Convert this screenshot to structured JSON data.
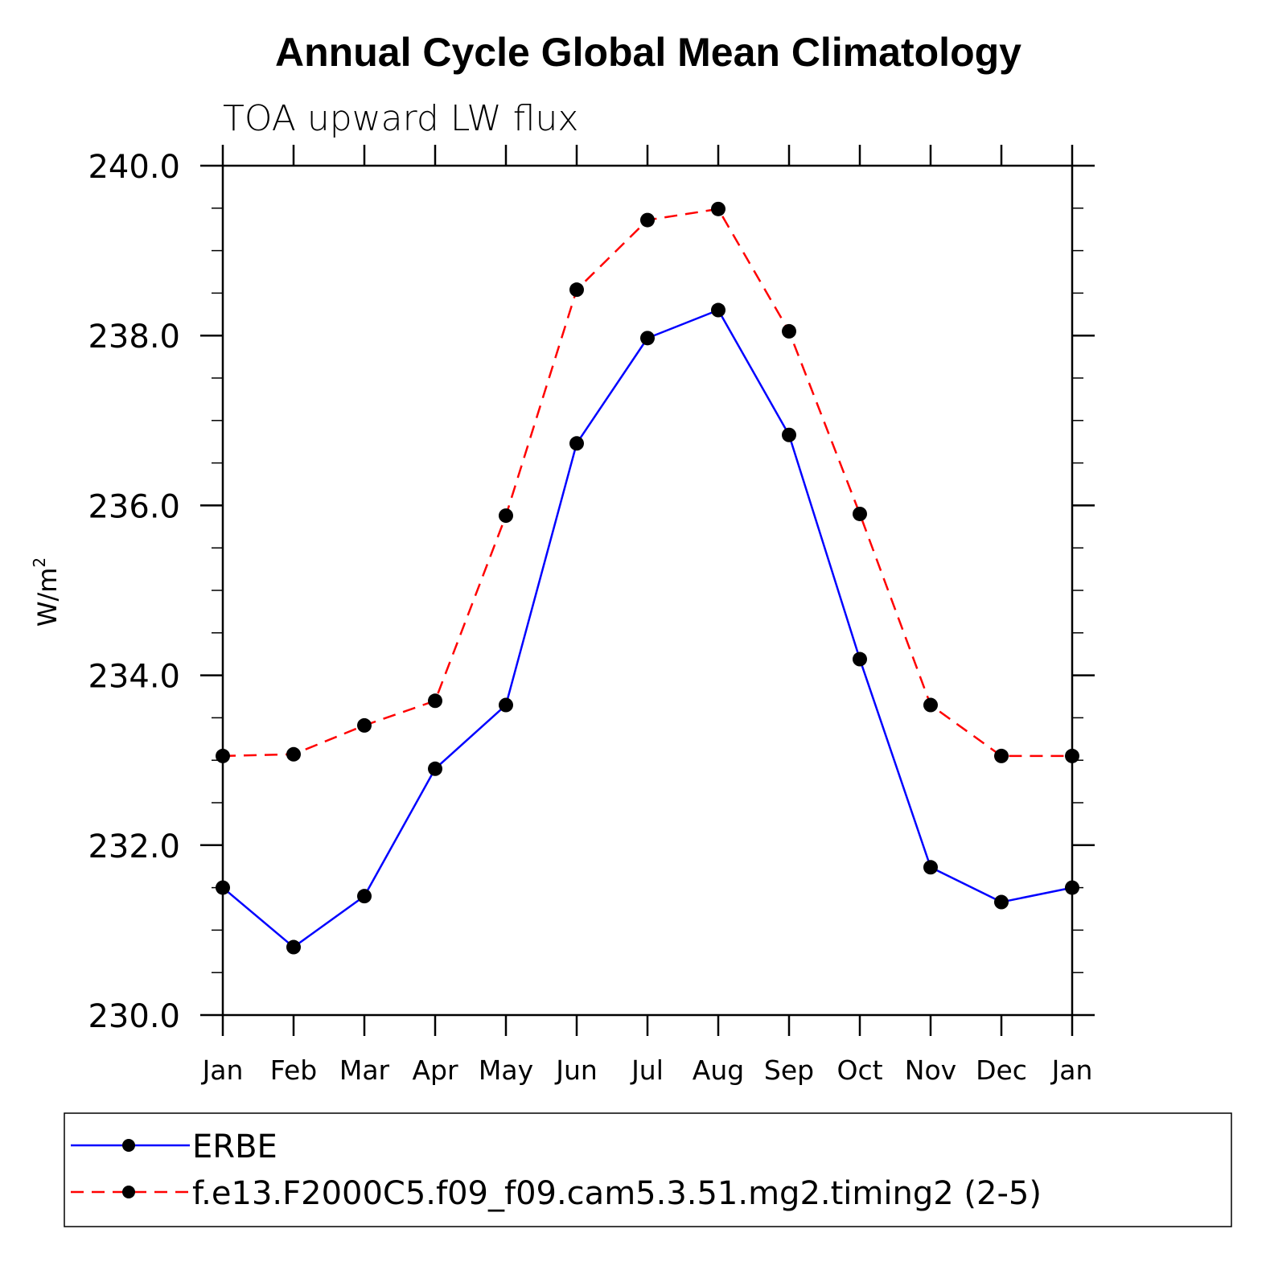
{
  "chart_data": {
    "type": "line",
    "title": "Annual Cycle Global Mean Climatology",
    "subtitle": "TOA upward LW flux",
    "ylabel": "W/m",
    "ylabel_superscript": "2",
    "xlabel": "",
    "categories": [
      "Jan",
      "Feb",
      "Mar",
      "Apr",
      "May",
      "Jun",
      "Jul",
      "Aug",
      "Sep",
      "Oct",
      "Nov",
      "Dec",
      "Jan"
    ],
    "ylim": [
      230.0,
      240.0
    ],
    "yticks": [
      "230.0",
      "232.0",
      "234.0",
      "236.0",
      "238.0",
      "240.0"
    ],
    "ytick_values": [
      230,
      232,
      234,
      236,
      238,
      240
    ],
    "series": [
      {
        "name": "ERBE",
        "color": "#0000ff",
        "style": "solid",
        "values": [
          231.5,
          230.8,
          231.4,
          232.9,
          233.65,
          236.73,
          237.97,
          238.3,
          236.83,
          234.19,
          231.74,
          231.33,
          231.5
        ]
      },
      {
        "name": "f.e13.F2000C5.f09_f09.cam5.3.51.mg2.timing2 (2-5)",
        "color": "#ff0000",
        "style": "dashed",
        "values": [
          233.05,
          233.07,
          233.41,
          233.7,
          235.88,
          238.54,
          239.36,
          239.49,
          238.05,
          235.9,
          233.65,
          233.05,
          233.05
        ]
      }
    ],
    "legend_position": "bottom",
    "marker_color": "#000000"
  }
}
